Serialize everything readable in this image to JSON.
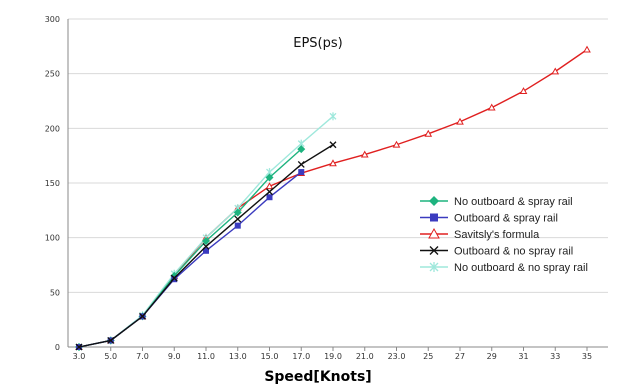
{
  "chart_data": {
    "type": "line",
    "title": "EPS(ps)",
    "xlabel": "Speed[Knots]",
    "ylabel": "",
    "categories": [
      "3.0",
      "5.0",
      "7.0",
      "9.0",
      "11.0",
      "13.0",
      "15.0",
      "17.0",
      "19.0",
      "21.0",
      "23.0",
      "25",
      "27",
      "29",
      "31",
      "33",
      "35"
    ],
    "ylim": [
      0,
      300
    ],
    "yticks": [
      0,
      50,
      100,
      150,
      200,
      250,
      300
    ],
    "grid": "horizontal",
    "legend_position": "right",
    "series": [
      {
        "name": "No outboard & spray rail",
        "color": "#1db37f",
        "marker": "diamond",
        "values": [
          0,
          6,
          28,
          65,
          97,
          123,
          155,
          181,
          null,
          null,
          null,
          null,
          null,
          null,
          null,
          null,
          null
        ]
      },
      {
        "name": "Outboard & spray rail",
        "color": "#3b3bbf",
        "marker": "square",
        "values": [
          0,
          6,
          28,
          62,
          88,
          111,
          137,
          160,
          null,
          null,
          null,
          null,
          null,
          null,
          null,
          null,
          null
        ]
      },
      {
        "name": "Savitsly's formula",
        "color": "#e02020",
        "marker": "triangle",
        "values": [
          0,
          6,
          28,
          65,
          100,
          127,
          147,
          159,
          168,
          176,
          185,
          195,
          206,
          219,
          234,
          252,
          272
        ]
      },
      {
        "name": "Outboard & no spray rail",
        "color": "#111111",
        "marker": "x",
        "values": [
          0,
          6,
          28,
          63,
          92,
          117,
          142,
          167,
          185,
          null,
          null,
          null,
          null,
          null,
          null,
          null,
          null
        ]
      },
      {
        "name": "No outboard & no  spray rail",
        "color": "#9fe8dc",
        "marker": "asterisk",
        "values": [
          0,
          6,
          29,
          67,
          100,
          127,
          160,
          186,
          211,
          null,
          null,
          null,
          null,
          null,
          null,
          null,
          null
        ]
      }
    ]
  }
}
